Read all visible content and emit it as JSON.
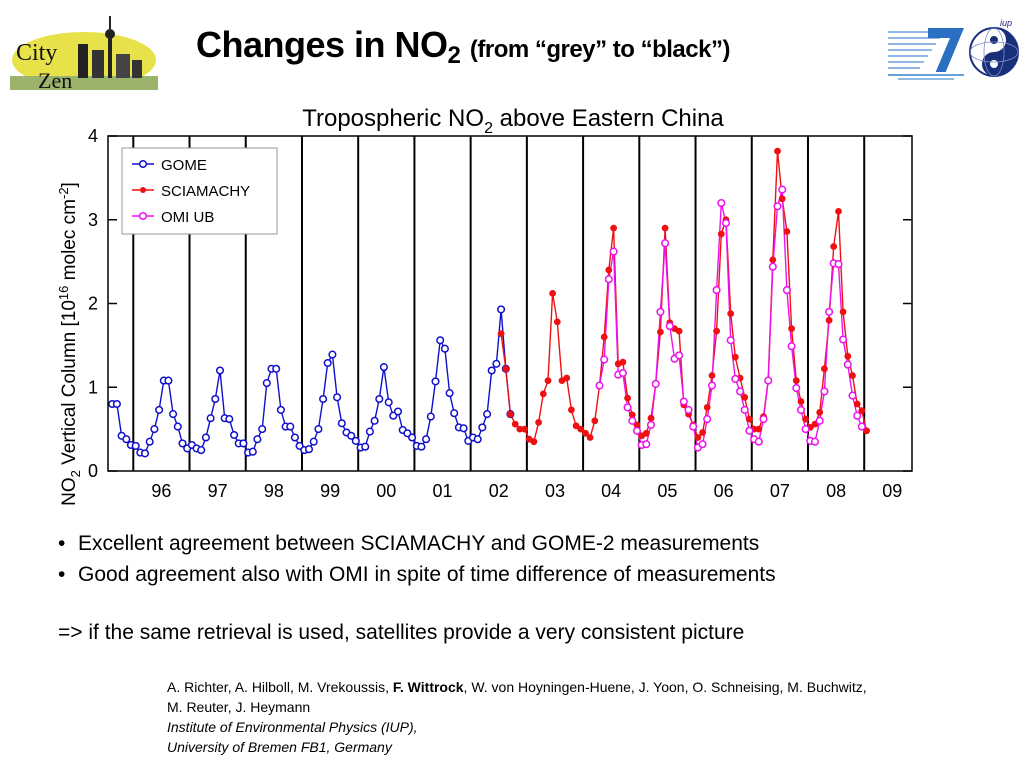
{
  "header": {
    "title_main": "Changes in NO",
    "title_subscript": "2",
    "title_paren": "(from “grey” to “black”)",
    "logo_left_text_line1": "City",
    "logo_left_text_line2": "Zen"
  },
  "chart_data": {
    "type": "line",
    "title": "Tropospheric NO",
    "title_subscript": "2",
    "title_suffix": " above Eastern China",
    "ylabel_pre": "NO",
    "ylabel_sub": "2",
    "ylabel_mid": " Vertical Column [10",
    "ylabel_sup": "16",
    "ylabel_mid2": " molec cm",
    "ylabel_sup2": "-2",
    "ylabel_post": "]",
    "ylim": [
      0,
      4
    ],
    "yticks": [
      "0",
      "1",
      "2",
      "3",
      "4"
    ],
    "xlim": [
      1995.55,
      2009.85
    ],
    "xtick_labels": [
      "96",
      "97",
      "98",
      "99",
      "00",
      "01",
      "02",
      "03",
      "04",
      "05",
      "06",
      "07",
      "08",
      "09"
    ],
    "xtick_positions": [
      1996.5,
      1997.5,
      1998.5,
      1999.5,
      2000.5,
      2001.5,
      2002.5,
      2003.5,
      2004.5,
      2005.5,
      2006.5,
      2007.5,
      2008.5,
      2009.5
    ],
    "year_boundaries": [
      1996,
      1997,
      1998,
      1999,
      2000,
      2001,
      2002,
      2003,
      2004,
      2005,
      2006,
      2007,
      2008,
      2009
    ],
    "grid": "vertical lines at year boundaries",
    "legend_position": "top-left",
    "series": [
      {
        "name": "GOME",
        "color": "#1010cc",
        "marker": "open-circle",
        "points": [
          [
            1995.625,
            0.8
          ],
          [
            1995.708,
            0.8
          ],
          [
            1995.792,
            0.42
          ],
          [
            1995.875,
            0.38
          ],
          [
            1995.958,
            0.31
          ],
          [
            1996.042,
            0.3
          ],
          [
            1996.125,
            0.22
          ],
          [
            1996.208,
            0.21
          ],
          [
            1996.292,
            0.35
          ],
          [
            1996.375,
            0.5
          ],
          [
            1996.458,
            0.73
          ],
          [
            1996.542,
            1.08
          ],
          [
            1996.625,
            1.08
          ],
          [
            1996.708,
            0.68
          ],
          [
            1996.792,
            0.53
          ],
          [
            1996.875,
            0.33
          ],
          [
            1996.958,
            0.27
          ],
          [
            1997.042,
            0.31
          ],
          [
            1997.125,
            0.27
          ],
          [
            1997.208,
            0.25
          ],
          [
            1997.292,
            0.4
          ],
          [
            1997.375,
            0.63
          ],
          [
            1997.458,
            0.86
          ],
          [
            1997.542,
            1.2
          ],
          [
            1997.625,
            0.63
          ],
          [
            1997.708,
            0.62
          ],
          [
            1997.792,
            0.43
          ],
          [
            1997.875,
            0.33
          ],
          [
            1997.958,
            0.33
          ],
          [
            1998.042,
            0.22
          ],
          [
            1998.125,
            0.23
          ],
          [
            1998.208,
            0.38
          ],
          [
            1998.292,
            0.5
          ],
          [
            1998.375,
            1.05
          ],
          [
            1998.458,
            1.22
          ],
          [
            1998.542,
            1.22
          ],
          [
            1998.625,
            0.73
          ],
          [
            1998.708,
            0.53
          ],
          [
            1998.792,
            0.53
          ],
          [
            1998.875,
            0.4
          ],
          [
            1998.958,
            0.3
          ],
          [
            1999.042,
            0.25
          ],
          [
            1999.125,
            0.26
          ],
          [
            1999.208,
            0.35
          ],
          [
            1999.292,
            0.5
          ],
          [
            1999.375,
            0.86
          ],
          [
            1999.458,
            1.29
          ],
          [
            1999.542,
            1.39
          ],
          [
            1999.625,
            0.88
          ],
          [
            1999.708,
            0.57
          ],
          [
            1999.792,
            0.46
          ],
          [
            1999.875,
            0.42
          ],
          [
            1999.958,
            0.36
          ],
          [
            2000.042,
            0.28
          ],
          [
            2000.125,
            0.29
          ],
          [
            2000.208,
            0.47
          ],
          [
            2000.292,
            0.6
          ],
          [
            2000.375,
            0.86
          ],
          [
            2000.458,
            1.24
          ],
          [
            2000.542,
            0.82
          ],
          [
            2000.625,
            0.66
          ],
          [
            2000.708,
            0.71
          ],
          [
            2000.792,
            0.49
          ],
          [
            2000.875,
            0.45
          ],
          [
            2000.958,
            0.4
          ],
          [
            2001.042,
            0.3
          ],
          [
            2001.125,
            0.29
          ],
          [
            2001.208,
            0.38
          ],
          [
            2001.292,
            0.65
          ],
          [
            2001.375,
            1.07
          ],
          [
            2001.458,
            1.56
          ],
          [
            2001.542,
            1.46
          ],
          [
            2001.625,
            0.93
          ],
          [
            2001.708,
            0.69
          ],
          [
            2001.792,
            0.52
          ],
          [
            2001.875,
            0.51
          ],
          [
            2001.958,
            0.36
          ],
          [
            2002.042,
            0.4
          ],
          [
            2002.125,
            0.38
          ],
          [
            2002.208,
            0.52
          ],
          [
            2002.292,
            0.68
          ],
          [
            2002.375,
            1.2
          ],
          [
            2002.458,
            1.28
          ],
          [
            2002.542,
            1.93
          ],
          [
            2002.625,
            1.22
          ],
          [
            2002.708,
            0.68
          ]
        ]
      },
      {
        "name": "SCIAMACHY",
        "color": "#ee1111",
        "marker": "filled-circle",
        "points": [
          [
            2002.542,
            1.64
          ],
          [
            2002.625,
            1.22
          ],
          [
            2002.708,
            0.68
          ],
          [
            2002.792,
            0.56
          ],
          [
            2002.875,
            0.5
          ],
          [
            2002.958,
            0.5
          ],
          [
            2003.042,
            0.38
          ],
          [
            2003.125,
            0.35
          ],
          [
            2003.208,
            0.58
          ],
          [
            2003.292,
            0.92
          ],
          [
            2003.375,
            1.08
          ],
          [
            2003.458,
            2.12
          ],
          [
            2003.542,
            1.78
          ],
          [
            2003.625,
            1.08
          ],
          [
            2003.708,
            1.11
          ],
          [
            2003.792,
            0.73
          ],
          [
            2003.875,
            0.54
          ],
          [
            2003.958,
            0.5
          ],
          [
            2004.042,
            0.45
          ],
          [
            2004.125,
            0.4
          ],
          [
            2004.208,
            0.6
          ],
          [
            2004.292,
            1.02
          ],
          [
            2004.375,
            1.6
          ],
          [
            2004.458,
            2.4
          ],
          [
            2004.542,
            2.9
          ],
          [
            2004.625,
            1.28
          ],
          [
            2004.708,
            1.3
          ],
          [
            2004.792,
            0.87
          ],
          [
            2004.875,
            0.67
          ],
          [
            2004.958,
            0.55
          ],
          [
            2005.042,
            0.42
          ],
          [
            2005.125,
            0.45
          ],
          [
            2005.208,
            0.63
          ],
          [
            2005.292,
            1.04
          ],
          [
            2005.375,
            1.66
          ],
          [
            2005.458,
            2.9
          ],
          [
            2005.542,
            1.77
          ],
          [
            2005.625,
            1.7
          ],
          [
            2005.708,
            1.67
          ],
          [
            2005.792,
            0.79
          ],
          [
            2005.875,
            0.68
          ],
          [
            2005.958,
            0.55
          ],
          [
            2006.042,
            0.4
          ],
          [
            2006.125,
            0.46
          ],
          [
            2006.208,
            0.76
          ],
          [
            2006.292,
            1.14
          ],
          [
            2006.375,
            1.67
          ],
          [
            2006.458,
            2.83
          ],
          [
            2006.542,
            3.0
          ],
          [
            2006.625,
            1.88
          ],
          [
            2006.708,
            1.36
          ],
          [
            2006.792,
            1.11
          ],
          [
            2006.875,
            0.88
          ],
          [
            2006.958,
            0.62
          ],
          [
            2007.042,
            0.5
          ],
          [
            2007.125,
            0.5
          ],
          [
            2007.208,
            0.65
          ],
          [
            2007.292,
            1.08
          ],
          [
            2007.375,
            2.52
          ],
          [
            2007.458,
            3.82
          ],
          [
            2007.542,
            3.25
          ],
          [
            2007.625,
            2.86
          ],
          [
            2007.708,
            1.7
          ],
          [
            2007.792,
            1.08
          ],
          [
            2007.875,
            0.83
          ],
          [
            2007.958,
            0.62
          ],
          [
            2008.042,
            0.52
          ],
          [
            2008.125,
            0.56
          ],
          [
            2008.208,
            0.7
          ],
          [
            2008.292,
            1.22
          ],
          [
            2008.375,
            1.8
          ],
          [
            2008.458,
            2.68
          ],
          [
            2008.542,
            3.1
          ],
          [
            2008.625,
            1.9
          ],
          [
            2008.708,
            1.37
          ],
          [
            2008.792,
            1.14
          ],
          [
            2008.875,
            0.8
          ],
          [
            2008.958,
            0.72
          ],
          [
            2009.042,
            0.48
          ]
        ]
      },
      {
        "name": "OMI UB",
        "color": "#ee11ee",
        "marker": "open-circle",
        "points": [
          [
            2004.292,
            1.02
          ],
          [
            2004.375,
            1.33
          ],
          [
            2004.458,
            2.29
          ],
          [
            2004.542,
            2.62
          ],
          [
            2004.625,
            1.15
          ],
          [
            2004.708,
            1.17
          ],
          [
            2004.792,
            0.76
          ],
          [
            2004.875,
            0.6
          ],
          [
            2004.958,
            0.48
          ],
          [
            2005.042,
            0.31
          ],
          [
            2005.125,
            0.32
          ],
          [
            2005.208,
            0.55
          ],
          [
            2005.292,
            1.04
          ],
          [
            2005.375,
            1.9
          ],
          [
            2005.458,
            2.72
          ],
          [
            2005.542,
            1.73
          ],
          [
            2005.625,
            1.34
          ],
          [
            2005.708,
            1.38
          ],
          [
            2005.792,
            0.83
          ],
          [
            2005.875,
            0.73
          ],
          [
            2005.958,
            0.53
          ],
          [
            2006.042,
            0.28
          ],
          [
            2006.125,
            0.32
          ],
          [
            2006.208,
            0.62
          ],
          [
            2006.292,
            1.02
          ],
          [
            2006.375,
            2.16
          ],
          [
            2006.458,
            3.2
          ],
          [
            2006.542,
            2.96
          ],
          [
            2006.625,
            1.56
          ],
          [
            2006.708,
            1.1
          ],
          [
            2006.792,
            0.95
          ],
          [
            2006.875,
            0.73
          ],
          [
            2006.958,
            0.48
          ],
          [
            2007.042,
            0.38
          ],
          [
            2007.125,
            0.35
          ],
          [
            2007.208,
            0.62
          ],
          [
            2007.292,
            1.08
          ],
          [
            2007.375,
            2.44
          ],
          [
            2007.458,
            3.16
          ],
          [
            2007.542,
            3.36
          ],
          [
            2007.625,
            2.16
          ],
          [
            2007.708,
            1.49
          ],
          [
            2007.792,
            0.99
          ],
          [
            2007.875,
            0.73
          ],
          [
            2007.958,
            0.5
          ],
          [
            2008.042,
            0.36
          ],
          [
            2008.125,
            0.35
          ],
          [
            2008.208,
            0.6
          ],
          [
            2008.292,
            0.95
          ],
          [
            2008.375,
            1.9
          ],
          [
            2008.458,
            2.48
          ],
          [
            2008.542,
            2.47
          ],
          [
            2008.625,
            1.57
          ],
          [
            2008.708,
            1.27
          ],
          [
            2008.792,
            0.9
          ],
          [
            2008.875,
            0.66
          ],
          [
            2008.958,
            0.53
          ]
        ]
      }
    ]
  },
  "bullets": [
    "Excellent agreement between SCIAMACHY and GOME-2 measurements",
    "Good agreement also with OMI in spite of time difference of measurements"
  ],
  "bullet_glyph": "•",
  "conclusion": "=> if the same retrieval is used, satellites provide a very consistent picture",
  "references": {
    "authors_pre": "A. Richter, A. Hilboll, M. Vrekoussis, ",
    "authors_bold": "F. Wittrock",
    "authors_post": ", W. von Hoyningen-Huene, J. Yoon, O. Schneising, M. Buchwitz, M. Reuter, J. Heymann",
    "institute_line1": "Institute of Environmental Physics (IUP),",
    "institute_line2": "University of Bremen FB1, Germany"
  }
}
